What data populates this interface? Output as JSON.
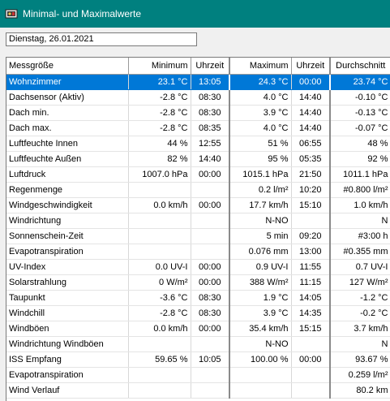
{
  "window": {
    "title": "Minimal- und Maximalwerte"
  },
  "date": "Dienstag, 26.01.2021",
  "headers": [
    "Messgröße",
    "Minimum",
    "Uhrzeit",
    "Maximum",
    "Uhrzeit",
    "Durchschnitt"
  ],
  "rows": [
    {
      "name": "Wohnzimmer",
      "min": "23.1 °C",
      "min_time": "13:05",
      "max": "24.3 °C",
      "max_time": "00:00",
      "avg": "23.74 °C"
    },
    {
      "name": "Dachsensor (Aktiv)",
      "min": "-2.8 °C",
      "min_time": "08:30",
      "max": "4.0 °C",
      "max_time": "14:40",
      "avg": "-0.10 °C"
    },
    {
      "name": "Dach min.",
      "min": "-2.8 °C",
      "min_time": "08:30",
      "max": "3.9 °C",
      "max_time": "14:40",
      "avg": "-0.13 °C"
    },
    {
      "name": "Dach max.",
      "min": "-2.8 °C",
      "min_time": "08:35",
      "max": "4.0 °C",
      "max_time": "14:40",
      "avg": "-0.07 °C"
    },
    {
      "name": "Luftfeuchte Innen",
      "min": "44 %",
      "min_time": "12:55",
      "max": "51 %",
      "max_time": "06:55",
      "avg": "48 %"
    },
    {
      "name": "Luftfeuchte Außen",
      "min": "82 %",
      "min_time": "14:40",
      "max": "95 %",
      "max_time": "05:35",
      "avg": "92 %"
    },
    {
      "name": "Luftdruck",
      "min": "1007.0 hPa",
      "min_time": "00:00",
      "max": "1015.1 hPa",
      "max_time": "21:50",
      "avg": "1011.1 hPa"
    },
    {
      "name": "Regenmenge",
      "min": "",
      "min_time": "",
      "max": "0.2 l/m²",
      "max_time": "10:20",
      "avg": "#0.800 l/m²"
    },
    {
      "name": "Windgeschwindigkeit",
      "min": "0.0 km/h",
      "min_time": "00:00",
      "max": "17.7 km/h",
      "max_time": "15:10",
      "avg": "1.0 km/h"
    },
    {
      "name": "Windrichtung",
      "min": "",
      "min_time": "",
      "max": "N-NO",
      "max_time": "",
      "avg": "N"
    },
    {
      "name": "Sonnenschein-Zeit",
      "min": "",
      "min_time": "",
      "max": "5 min",
      "max_time": "09:20",
      "avg": "#3:00 h"
    },
    {
      "name": "Evapotranspiration",
      "min": "",
      "min_time": "",
      "max": "0.076 mm",
      "max_time": "13:00",
      "avg": "#0.355 mm"
    },
    {
      "name": "UV-Index",
      "min": "0.0 UV-I",
      "min_time": "00:00",
      "max": "0.9 UV-I",
      "max_time": "11:55",
      "avg": "0.7 UV-I"
    },
    {
      "name": "Solarstrahlung",
      "min": "0 W/m²",
      "min_time": "00:00",
      "max": "388 W/m²",
      "max_time": "11:15",
      "avg": "127 W/m²"
    },
    {
      "name": "Taupunkt",
      "min": "-3.6 °C",
      "min_time": "08:30",
      "max": "1.9 °C",
      "max_time": "14:05",
      "avg": "-1.2 °C"
    },
    {
      "name": "Windchill",
      "min": "-2.8 °C",
      "min_time": "08:30",
      "max": "3.9 °C",
      "max_time": "14:35",
      "avg": "-0.2 °C"
    },
    {
      "name": "Windböen",
      "min": "0.0 km/h",
      "min_time": "00:00",
      "max": "35.4 km/h",
      "max_time": "15:15",
      "avg": "3.7 km/h"
    },
    {
      "name": "Windrichtung Windböen",
      "min": "",
      "min_time": "",
      "max": "N-NO",
      "max_time": "",
      "avg": "N"
    },
    {
      "name": "ISS Empfang",
      "min": "59.65 %",
      "min_time": "10:05",
      "max": "100.00 %",
      "max_time": "00:00",
      "avg": "93.67 %"
    },
    {
      "name": "Evapotranspiration",
      "min": "",
      "min_time": "",
      "max": "",
      "max_time": "",
      "avg": "0.259 l/m²"
    },
    {
      "name": "Wind Verlauf",
      "min": "",
      "min_time": "",
      "max": "",
      "max_time": "",
      "avg": "80.2 km"
    }
  ],
  "selected_row": 0
}
